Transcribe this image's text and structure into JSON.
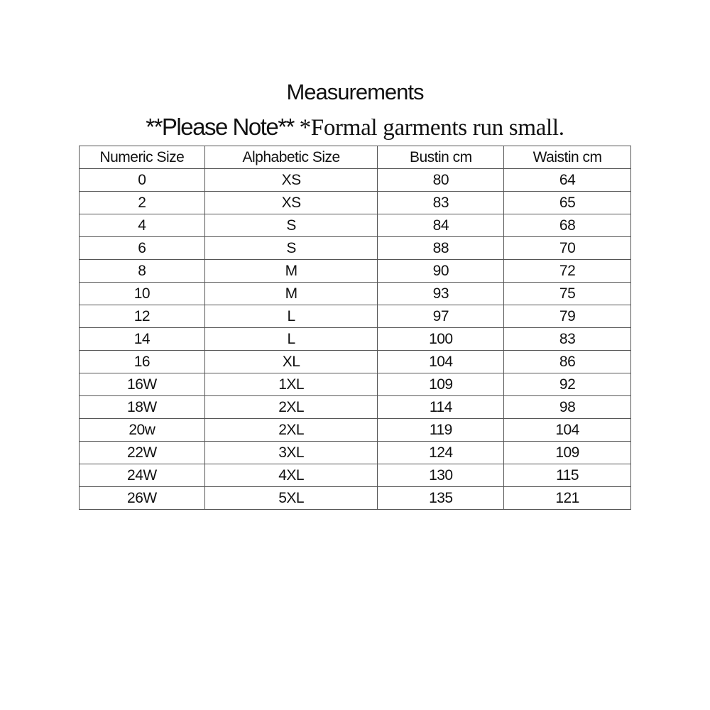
{
  "title": "Measurements",
  "note_prefix": "**Please Note** ",
  "note_text": "*Formal garments run small.",
  "table": {
    "headers": [
      "Numeric Size",
      "Alphabetic Size",
      "Bustin cm",
      "Waistin cm"
    ],
    "rows": [
      [
        "0",
        "XS",
        "80",
        "64"
      ],
      [
        "2",
        "XS",
        "83",
        "65"
      ],
      [
        "4",
        "S",
        "84",
        "68"
      ],
      [
        "6",
        "S",
        "88",
        "70"
      ],
      [
        "8",
        "M",
        "90",
        "72"
      ],
      [
        "10",
        "M",
        "93",
        "75"
      ],
      [
        "12",
        "L",
        "97",
        "79"
      ],
      [
        "14",
        "L",
        "100",
        "83"
      ],
      [
        "16",
        "XL",
        "104",
        "86"
      ],
      [
        "16W",
        "1XL",
        "109",
        "92"
      ],
      [
        "18W",
        "2XL",
        "114",
        "98"
      ],
      [
        "20w",
        "2XL",
        "119",
        "104"
      ],
      [
        "22W",
        "3XL",
        "124",
        "109"
      ],
      [
        "24W",
        "4XL",
        "130",
        "115"
      ],
      [
        "26W",
        "5XL",
        "135",
        "121"
      ]
    ]
  }
}
